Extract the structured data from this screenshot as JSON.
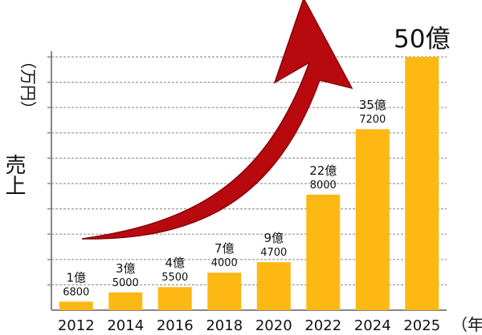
{
  "chart_data": {
    "type": "bar",
    "categories": [
      "2012",
      "2014",
      "2016",
      "2018",
      "2020",
      "2022",
      "2024",
      "2025"
    ],
    "values": [
      16800,
      35000,
      45500,
      74000,
      94700,
      228000,
      357200,
      500000
    ],
    "bar_labels": [
      {
        "oku": "1億",
        "man": "6800"
      },
      {
        "oku": "3億",
        "man": "5000"
      },
      {
        "oku": "4億",
        "man": "5500"
      },
      {
        "oku": "7億",
        "man": "4000"
      },
      {
        "oku": "9億",
        "man": "4700"
      },
      {
        "oku": "22億",
        "man": "8000"
      },
      {
        "oku": "35億",
        "man": "7200"
      },
      {
        "oku": "50億",
        "man": ""
      }
    ],
    "ylabel": "売上",
    "yunit": "（万円）",
    "xunit": "（年）",
    "ylim": [
      0,
      500000
    ],
    "grid": true,
    "annotation": "upward-trend-arrow",
    "colors": {
      "bar": "#FDB813",
      "arrow": "#B8090F",
      "arrow_edge": "#8A0008",
      "axis": "#888888",
      "grid": "#999999"
    }
  }
}
